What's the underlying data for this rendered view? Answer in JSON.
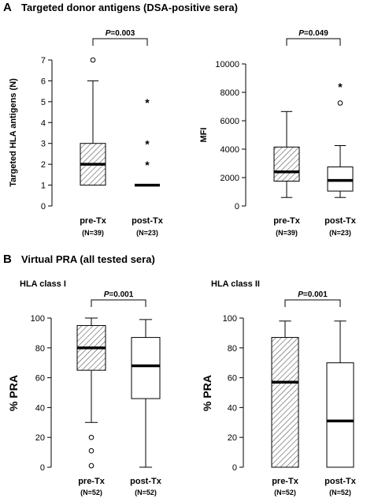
{
  "section_a": {
    "letter": "A",
    "title": "Targeted donor antigens (DSA-positive sera)"
  },
  "section_b": {
    "letter": "B",
    "title": "Virtual PRA (all tested sera)"
  },
  "chart_data": [
    {
      "type": "boxplot",
      "panel_title": "",
      "ylabel": "Targeted HLA antigens (N)",
      "ylim": [
        0,
        7
      ],
      "yticks": [
        0,
        1,
        2,
        3,
        4,
        5,
        6,
        7
      ],
      "significance": {
        "p_symbol": "P",
        "p_value": "=0.003"
      },
      "groups": [
        {
          "name": "pre-Tx",
          "n_label": "(N=39)",
          "hatched": true,
          "whisker_low": 1,
          "q1": 1,
          "median": 2,
          "q3": 3,
          "whisker_high": 6,
          "outliers": [
            7
          ],
          "extremes": []
        },
        {
          "name": "post-Tx",
          "n_label": "(N=23)",
          "hatched": false,
          "whisker_low": 1,
          "q1": 1,
          "median": 1,
          "q3": 1,
          "whisker_high": 1,
          "outliers": [],
          "extremes": [
            2,
            3,
            5
          ]
        }
      ]
    },
    {
      "type": "boxplot",
      "panel_title": "",
      "ylabel": "MFI",
      "ylim": [
        0,
        10000
      ],
      "yticks": [
        0,
        2000,
        4000,
        6000,
        8000,
        10000
      ],
      "significance": {
        "p_symbol": "P",
        "p_value": "=0.049"
      },
      "groups": [
        {
          "name": "pre-Tx",
          "n_label": "(N=39)",
          "hatched": true,
          "whisker_low": 600,
          "q1": 1750,
          "median": 2400,
          "q3": 4150,
          "whisker_high": 6650,
          "outliers": [],
          "extremes": []
        },
        {
          "name": "post-Tx",
          "n_label": "(N=23)",
          "hatched": false,
          "whisker_low": 600,
          "q1": 1050,
          "median": 1800,
          "q3": 2750,
          "whisker_high": 4250,
          "outliers": [
            7250
          ],
          "extremes": [
            8450
          ]
        }
      ]
    },
    {
      "type": "boxplot",
      "panel_title": "HLA class I",
      "ylabel": "% PRA",
      "ylim": [
        0,
        100
      ],
      "yticks": [
        0,
        20,
        40,
        60,
        80,
        100
      ],
      "significance": {
        "p_symbol": "P",
        "p_value": "=0.001"
      },
      "groups": [
        {
          "name": "pre-Tx",
          "n_label": "(N=52)",
          "hatched": true,
          "whisker_low": 30,
          "q1": 65,
          "median": 80,
          "q3": 95,
          "whisker_high": 100,
          "outliers": [
            1,
            11,
            20
          ],
          "extremes": []
        },
        {
          "name": "post-Tx",
          "n_label": "(N=52)",
          "hatched": false,
          "whisker_low": 0,
          "q1": 46,
          "median": 68,
          "q3": 87,
          "whisker_high": 99,
          "outliers": [],
          "extremes": []
        }
      ]
    },
    {
      "type": "boxplot",
      "panel_title": "HLA class II",
      "ylabel": "% PRA",
      "ylim": [
        0,
        100
      ],
      "yticks": [
        0,
        20,
        40,
        60,
        80,
        100
      ],
      "significance": {
        "p_symbol": "P",
        "p_value": "=0.001"
      },
      "groups": [
        {
          "name": "pre-Tx",
          "n_label": "(N=52)",
          "hatched": true,
          "whisker_low": 0,
          "q1": 0,
          "median": 57,
          "q3": 87,
          "whisker_high": 98,
          "outliers": [],
          "extremes": []
        },
        {
          "name": "post-Tx",
          "n_label": "(N=52)",
          "hatched": false,
          "whisker_low": 0,
          "q1": 0,
          "median": 31,
          "q3": 70,
          "whisker_high": 98,
          "outliers": [],
          "extremes": []
        }
      ]
    }
  ]
}
